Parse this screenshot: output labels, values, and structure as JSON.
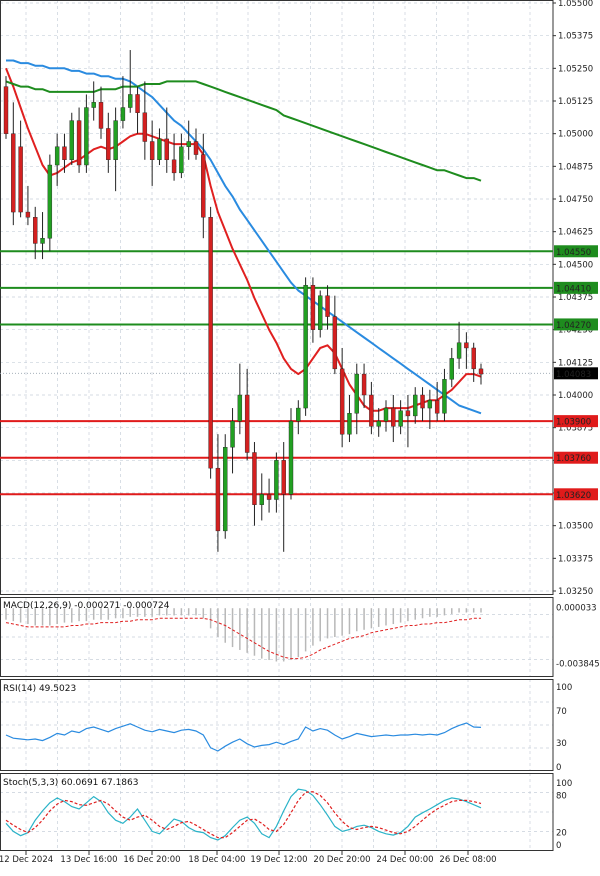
{
  "chart_data": [
    {
      "type": "candlestick",
      "title": "",
      "ylim": [
        1.0325,
        1.055
      ],
      "y_ticks": [
        "1.05500",
        "1.05375",
        "1.05250",
        "1.05125",
        "1.05000",
        "1.04875",
        "1.04750",
        "1.04625",
        "1.04500",
        "1.04375",
        "1.04250",
        "1.04125",
        "1.04000",
        "1.03875",
        "1.03750",
        "1.03625",
        "1.03500",
        "1.03375",
        "1.03250"
      ],
      "x_ticks": [
        "12 Dec 2024",
        "13 Dec 16:00",
        "16 Dec 20:00",
        "18 Dec 04:00",
        "19 Dec 12:00",
        "20 Dec 20:00",
        "24 Dec 00:00",
        "26 Dec 08:00"
      ],
      "current_price": {
        "label": "1.04083",
        "value": 1.04083,
        "color": "#000000"
      },
      "levels": [
        {
          "label": "1.04550",
          "value": 1.0455,
          "color": "#1e8c1e"
        },
        {
          "label": "1.04410",
          "value": 1.0441,
          "color": "#1e8c1e"
        },
        {
          "label": "1.04270",
          "value": 1.0427,
          "color": "#1e8c1e"
        },
        {
          "label": "1.03900",
          "value": 1.039,
          "color": "#e01b1b"
        },
        {
          "label": "1.03760",
          "value": 1.0376,
          "color": "#e01b1b"
        },
        {
          "label": "1.03620",
          "value": 1.0362,
          "color": "#e01b1b"
        }
      ],
      "colors": {
        "up": "#22a022",
        "down": "#d42020",
        "wick": "#222222"
      },
      "candles": [
        {
          "o": 1.0518,
          "h": 1.0522,
          "l": 1.0498,
          "c": 1.05
        },
        {
          "o": 1.05,
          "h": 1.0512,
          "l": 1.0465,
          "c": 1.047
        },
        {
          "o": 1.0495,
          "h": 1.0505,
          "l": 1.0468,
          "c": 1.047
        },
        {
          "o": 1.047,
          "h": 1.048,
          "l": 1.0465,
          "c": 1.0468
        },
        {
          "o": 1.0468,
          "h": 1.0472,
          "l": 1.0452,
          "c": 1.0458
        },
        {
          "o": 1.0458,
          "h": 1.047,
          "l": 1.0452,
          "c": 1.046
        },
        {
          "o": 1.046,
          "h": 1.0492,
          "l": 1.0455,
          "c": 1.0488
        },
        {
          "o": 1.0488,
          "h": 1.05,
          "l": 1.048,
          "c": 1.0495
        },
        {
          "o": 1.0495,
          "h": 1.05,
          "l": 1.0485,
          "c": 1.049
        },
        {
          "o": 1.049,
          "h": 1.0508,
          "l": 1.0488,
          "c": 1.0505
        },
        {
          "o": 1.0505,
          "h": 1.051,
          "l": 1.0485,
          "c": 1.0488
        },
        {
          "o": 1.0488,
          "h": 1.0515,
          "l": 1.0485,
          "c": 1.051
        },
        {
          "o": 1.051,
          "h": 1.052,
          "l": 1.0505,
          "c": 1.0512
        },
        {
          "o": 1.0512,
          "h": 1.0518,
          "l": 1.0498,
          "c": 1.0502
        },
        {
          "o": 1.0502,
          "h": 1.0508,
          "l": 1.0485,
          "c": 1.049
        },
        {
          "o": 1.049,
          "h": 1.051,
          "l": 1.0478,
          "c": 1.0505
        },
        {
          "o": 1.0505,
          "h": 1.0522,
          "l": 1.0502,
          "c": 1.051
        },
        {
          "o": 1.051,
          "h": 1.0532,
          "l": 1.0508,
          "c": 1.0515
        },
        {
          "o": 1.0515,
          "h": 1.0518,
          "l": 1.05,
          "c": 1.0508
        },
        {
          "o": 1.0508,
          "h": 1.052,
          "l": 1.049,
          "c": 1.0497
        },
        {
          "o": 1.0497,
          "h": 1.0505,
          "l": 1.048,
          "c": 1.049
        },
        {
          "o": 1.049,
          "h": 1.0502,
          "l": 1.0488,
          "c": 1.0498
        },
        {
          "o": 1.0498,
          "h": 1.051,
          "l": 1.0485,
          "c": 1.049
        },
        {
          "o": 1.049,
          "h": 1.05,
          "l": 1.0482,
          "c": 1.0485
        },
        {
          "o": 1.0485,
          "h": 1.05,
          "l": 1.0483,
          "c": 1.0495
        },
        {
          "o": 1.0495,
          "h": 1.0505,
          "l": 1.049,
          "c": 1.0497
        },
        {
          "o": 1.0497,
          "h": 1.0502,
          "l": 1.049,
          "c": 1.0492
        },
        {
          "o": 1.0492,
          "h": 1.05,
          "l": 1.046,
          "c": 1.0468
        },
        {
          "o": 1.0468,
          "h": 1.0472,
          "l": 1.0368,
          "c": 1.0372
        },
        {
          "o": 1.0372,
          "h": 1.0385,
          "l": 1.034,
          "c": 1.0348
        },
        {
          "o": 1.0348,
          "h": 1.0385,
          "l": 1.0345,
          "c": 1.038
        },
        {
          "o": 1.038,
          "h": 1.0395,
          "l": 1.037,
          "c": 1.039
        },
        {
          "o": 1.039,
          "h": 1.0412,
          "l": 1.0385,
          "c": 1.04
        },
        {
          "o": 1.04,
          "h": 1.041,
          "l": 1.0375,
          "c": 1.0378
        },
        {
          "o": 1.0378,
          "h": 1.0382,
          "l": 1.035,
          "c": 1.0358
        },
        {
          "o": 1.0358,
          "h": 1.037,
          "l": 1.0352,
          "c": 1.0362
        },
        {
          "o": 1.0362,
          "h": 1.0368,
          "l": 1.0355,
          "c": 1.036
        },
        {
          "o": 1.036,
          "h": 1.0378,
          "l": 1.0355,
          "c": 1.0375
        },
        {
          "o": 1.0375,
          "h": 1.0382,
          "l": 1.034,
          "c": 1.0362
        },
        {
          "o": 1.0362,
          "h": 1.0395,
          "l": 1.036,
          "c": 1.039
        },
        {
          "o": 1.039,
          "h": 1.0398,
          "l": 1.0385,
          "c": 1.0395
        },
        {
          "o": 1.0395,
          "h": 1.0445,
          "l": 1.0392,
          "c": 1.0442
        },
        {
          "o": 1.0442,
          "h": 1.0445,
          "l": 1.042,
          "c": 1.0425
        },
        {
          "o": 1.0425,
          "h": 1.044,
          "l": 1.0422,
          "c": 1.0438
        },
        {
          "o": 1.0438,
          "h": 1.0442,
          "l": 1.0425,
          "c": 1.043
        },
        {
          "o": 1.043,
          "h": 1.0438,
          "l": 1.0408,
          "c": 1.041
        },
        {
          "o": 1.041,
          "h": 1.0418,
          "l": 1.038,
          "c": 1.0385
        },
        {
          "o": 1.0385,
          "h": 1.04,
          "l": 1.0382,
          "c": 1.0393
        },
        {
          "o": 1.0393,
          "h": 1.0412,
          "l": 1.0385,
          "c": 1.0408
        },
        {
          "o": 1.0408,
          "h": 1.0412,
          "l": 1.0395,
          "c": 1.04
        },
        {
          "o": 1.04,
          "h": 1.0405,
          "l": 1.0385,
          "c": 1.0388
        },
        {
          "o": 1.0388,
          "h": 1.0395,
          "l": 1.0384,
          "c": 1.039
        },
        {
          "o": 1.039,
          "h": 1.0398,
          "l": 1.0386,
          "c": 1.0395
        },
        {
          "o": 1.0395,
          "h": 1.04,
          "l": 1.0382,
          "c": 1.0388
        },
        {
          "o": 1.0388,
          "h": 1.0398,
          "l": 1.0385,
          "c": 1.0394
        },
        {
          "o": 1.0394,
          "h": 1.04,
          "l": 1.038,
          "c": 1.0392
        },
        {
          "o": 1.0392,
          "h": 1.0403,
          "l": 1.0389,
          "c": 1.04
        },
        {
          "o": 1.04,
          "h": 1.0403,
          "l": 1.039,
          "c": 1.0395
        },
        {
          "o": 1.0395,
          "h": 1.0402,
          "l": 1.0387,
          "c": 1.0398
        },
        {
          "o": 1.0398,
          "h": 1.0405,
          "l": 1.039,
          "c": 1.0393
        },
        {
          "o": 1.0393,
          "h": 1.041,
          "l": 1.039,
          "c": 1.0406
        },
        {
          "o": 1.0406,
          "h": 1.0418,
          "l": 1.0403,
          "c": 1.0414
        },
        {
          "o": 1.0414,
          "h": 1.0428,
          "l": 1.041,
          "c": 1.042
        },
        {
          "o": 1.042,
          "h": 1.0424,
          "l": 1.041,
          "c": 1.0418
        },
        {
          "o": 1.0418,
          "h": 1.042,
          "l": 1.0405,
          "c": 1.041
        },
        {
          "o": 1.041,
          "h": 1.0412,
          "l": 1.0404,
          "c": 1.0408
        }
      ],
      "ma_series": [
        {
          "color": "#e02020",
          "values": [
            1.0525,
            1.0518,
            1.051,
            1.0502,
            1.0495,
            1.0488,
            1.0484,
            1.0485,
            1.0487,
            1.0489,
            1.049,
            1.0492,
            1.0494,
            1.0495,
            1.0494,
            1.0495,
            1.0497,
            1.0499,
            1.05,
            1.05,
            1.0499,
            1.0498,
            1.0497,
            1.0496,
            1.0496,
            1.0496,
            1.0496,
            1.0492,
            1.048,
            1.047,
            1.0463,
            1.0456,
            1.045,
            1.0444,
            1.0437,
            1.0431,
            1.0425,
            1.042,
            1.0414,
            1.041,
            1.0408,
            1.041,
            1.0414,
            1.0418,
            1.0419,
            1.0416,
            1.041,
            1.0404,
            1.04,
            1.0396,
            1.0394,
            1.0394,
            1.0395,
            1.0395,
            1.0395,
            1.0395,
            1.0396,
            1.0397,
            1.0398,
            1.0398,
            1.04,
            1.0402,
            1.0405,
            1.0408,
            1.0408,
            1.0407
          ]
        },
        {
          "color": "#2a8be0",
          "values": [
            1.0528,
            1.0528,
            1.0527,
            1.0527,
            1.0526,
            1.0526,
            1.0525,
            1.0525,
            1.0525,
            1.0524,
            1.0524,
            1.0523,
            1.0523,
            1.0522,
            1.0522,
            1.0521,
            1.0521,
            1.052,
            1.0518,
            1.0516,
            1.0514,
            1.0511,
            1.0508,
            1.0505,
            1.0503,
            1.05,
            1.0497,
            1.0494,
            1.049,
            1.0485,
            1.048,
            1.0476,
            1.0471,
            1.0467,
            1.0463,
            1.0459,
            1.0455,
            1.0451,
            1.0447,
            1.0443,
            1.044,
            1.0438,
            1.0436,
            1.0434,
            1.0432,
            1.043,
            1.0428,
            1.0426,
            1.0424,
            1.0422,
            1.042,
            1.0418,
            1.0416,
            1.0414,
            1.0412,
            1.041,
            1.0408,
            1.0406,
            1.0404,
            1.0402,
            1.04,
            1.0398,
            1.0396,
            1.0395,
            1.0394,
            1.0393
          ]
        },
        {
          "color": "#1e8c1e",
          "values": [
            1.052,
            1.0519,
            1.0518,
            1.0518,
            1.0517,
            1.0517,
            1.0516,
            1.0516,
            1.0516,
            1.0516,
            1.0516,
            1.0516,
            1.0516,
            1.0517,
            1.0517,
            1.0517,
            1.0518,
            1.0518,
            1.0518,
            1.0519,
            1.0519,
            1.0519,
            1.052,
            1.052,
            1.052,
            1.052,
            1.052,
            1.0519,
            1.0518,
            1.0517,
            1.0516,
            1.0515,
            1.0514,
            1.0513,
            1.0512,
            1.0511,
            1.051,
            1.0509,
            1.0507,
            1.0506,
            1.0505,
            1.0504,
            1.0503,
            1.0502,
            1.0501,
            1.05,
            1.0499,
            1.0498,
            1.0497,
            1.0496,
            1.0495,
            1.0494,
            1.0493,
            1.0492,
            1.0491,
            1.049,
            1.0489,
            1.0488,
            1.0487,
            1.0486,
            1.0486,
            1.0485,
            1.0484,
            1.0483,
            1.0483,
            1.0482
          ]
        }
      ]
    },
    {
      "type": "bar",
      "title": "MACD(12,26,9) -0.000271 -0.000724",
      "ylim": [
        -0.0045,
        0.0005
      ],
      "y_ticks": [
        "0.000033",
        "-0.003845"
      ],
      "histogram": [
        -0.0008,
        -0.0009,
        -0.001,
        -0.0011,
        -0.0012,
        -0.0012,
        -0.0012,
        -0.0011,
        -0.001,
        -0.001,
        -0.0009,
        -0.0009,
        -0.0008,
        -0.0008,
        -0.0008,
        -0.0007,
        -0.0007,
        -0.0006,
        -0.0006,
        -0.0006,
        -0.0006,
        -0.0005,
        -0.0005,
        -0.0005,
        -0.0005,
        -0.0005,
        -0.0005,
        -0.0007,
        -0.0014,
        -0.002,
        -0.0024,
        -0.0027,
        -0.0029,
        -0.0031,
        -0.0033,
        -0.0035,
        -0.0036,
        -0.0037,
        -0.0037,
        -0.0036,
        -0.0034,
        -0.003,
        -0.0026,
        -0.0023,
        -0.0021,
        -0.002,
        -0.0019,
        -0.0018,
        -0.0016,
        -0.0015,
        -0.0014,
        -0.0013,
        -0.0012,
        -0.0011,
        -0.001,
        -0.0009,
        -0.0008,
        -0.0007,
        -0.0006,
        -0.0006,
        -0.0005,
        -0.0004,
        -0.0003,
        -0.0003,
        -0.0003,
        -0.0003
      ],
      "signal": [
        -0.001,
        -0.0011,
        -0.0012,
        -0.0013,
        -0.0013,
        -0.0013,
        -0.0013,
        -0.0013,
        -0.0013,
        -0.0012,
        -0.0012,
        -0.0011,
        -0.0011,
        -0.001,
        -0.001,
        -0.001,
        -0.0009,
        -0.0009,
        -0.0008,
        -0.0008,
        -0.0008,
        -0.0007,
        -0.0007,
        -0.0007,
        -0.0007,
        -0.0007,
        -0.0007,
        -0.0007,
        -0.0008,
        -0.001,
        -0.0012,
        -0.0015,
        -0.0018,
        -0.0021,
        -0.0024,
        -0.0027,
        -0.003,
        -0.0032,
        -0.0034,
        -0.0035,
        -0.0035,
        -0.0034,
        -0.0032,
        -0.0029,
        -0.0027,
        -0.0025,
        -0.0023,
        -0.0021,
        -0.002,
        -0.0019,
        -0.0017,
        -0.0016,
        -0.0015,
        -0.0014,
        -0.0013,
        -0.0012,
        -0.0012,
        -0.0011,
        -0.0011,
        -0.001,
        -0.001,
        -0.0009,
        -0.0008,
        -0.0008,
        -0.0007,
        -0.0007
      ]
    },
    {
      "type": "line",
      "title": "RSI(14) 49.5023",
      "ylim": [
        0,
        100
      ],
      "y_ticks": [
        "100",
        "70",
        "30",
        "0"
      ],
      "series": [
        {
          "values": [
            40,
            36,
            35,
            34,
            35,
            33,
            37,
            42,
            40,
            45,
            43,
            48,
            50,
            47,
            44,
            48,
            51,
            54,
            50,
            46,
            44,
            47,
            45,
            43,
            46,
            47,
            45,
            40,
            24,
            20,
            26,
            31,
            35,
            29,
            25,
            27,
            28,
            31,
            28,
            32,
            35,
            50,
            45,
            48,
            46,
            40,
            35,
            38,
            42,
            40,
            38,
            39,
            40,
            39,
            40,
            40,
            41,
            40,
            41,
            40,
            43,
            48,
            52,
            55,
            50,
            49.5
          ]
        }
      ]
    },
    {
      "type": "line",
      "title": "Stoch(5,3,3) 60.0691 67.1863",
      "ylim": [
        0,
        100
      ],
      "y_ticks": [
        "100",
        "80",
        "20",
        "0"
      ],
      "series": [
        {
          "values": [
            35,
            22,
            15,
            20,
            40,
            55,
            68,
            76,
            70,
            62,
            58,
            68,
            78,
            70,
            52,
            40,
            35,
            45,
            58,
            40,
            22,
            18,
            30,
            42,
            38,
            28,
            22,
            20,
            12,
            8,
            15,
            28,
            40,
            45,
            35,
            18,
            12,
            30,
            55,
            78,
            90,
            88,
            80,
            65,
            48,
            30,
            22,
            25,
            30,
            32,
            28,
            22,
            18,
            16,
            20,
            30,
            45,
            52,
            58,
            65,
            72,
            76,
            74,
            70,
            65,
            60
          ]
        },
        {
          "values": [
            40,
            32,
            25,
            20,
            28,
            40,
            55,
            66,
            72,
            70,
            65,
            64,
            68,
            72,
            66,
            55,
            45,
            40,
            45,
            48,
            40,
            30,
            25,
            30,
            36,
            38,
            32,
            25,
            18,
            12,
            12,
            20,
            30,
            40,
            42,
            35,
            25,
            22,
            33,
            52,
            72,
            85,
            86,
            80,
            68,
            52,
            38,
            28,
            25,
            28,
            30,
            28,
            24,
            20,
            18,
            22,
            30,
            40,
            50,
            58,
            64,
            70,
            72,
            72,
            70,
            67
          ]
        }
      ]
    }
  ]
}
